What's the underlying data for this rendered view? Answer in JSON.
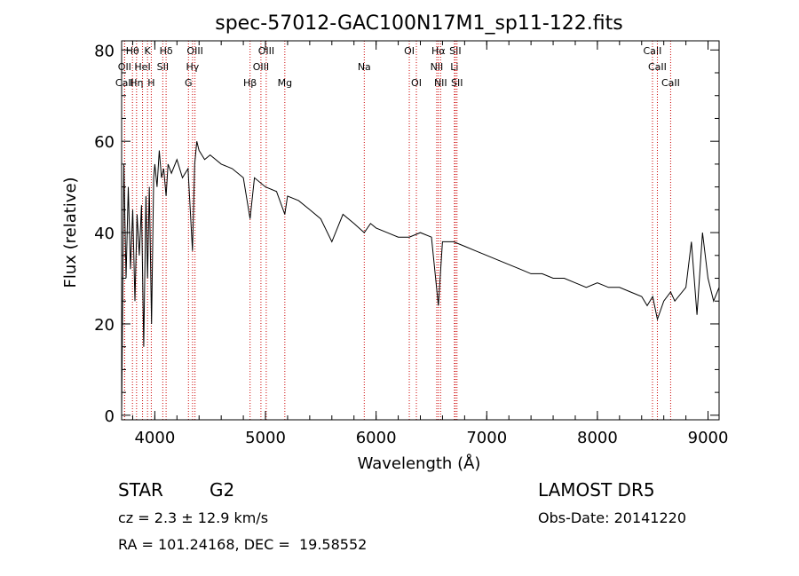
{
  "chart_data": {
    "type": "line",
    "title": "spec-57012-GAC100N17M1_sp11-122.fits",
    "xlabel": "Wavelength (Å)",
    "ylabel": "Flux (relative)",
    "xlim": [
      3700,
      9100
    ],
    "ylim": [
      -1,
      82
    ],
    "xticks": [
      4000,
      5000,
      6000,
      7000,
      8000,
      9000
    ],
    "yticks": [
      0,
      20,
      40,
      60,
      80
    ],
    "line_color": "#000000",
    "marker_color": "#cc0000",
    "series": [
      {
        "x": [
          3700,
          3720,
          3740,
          3760,
          3780,
          3800,
          3820,
          3840,
          3860,
          3880,
          3900,
          3920,
          3934,
          3950,
          3970,
          3990,
          4000,
          4020,
          4040,
          4060,
          4080,
          4102,
          4120,
          4150,
          4200,
          4250,
          4300,
          4320,
          4340,
          4360,
          4380,
          4400,
          4450,
          4500,
          4600,
          4700,
          4800,
          4861,
          4900,
          5000,
          5100,
          5175,
          5200,
          5300,
          5400,
          5500,
          5600,
          5700,
          5800,
          5893,
          5950,
          6000,
          6100,
          6200,
          6300,
          6400,
          6500,
          6563,
          6600,
          6700,
          6800,
          6900,
          7000,
          7100,
          7200,
          7300,
          7400,
          7500,
          7600,
          7700,
          7800,
          7900,
          8000,
          8100,
          8200,
          8300,
          8400,
          8450,
          8500,
          8542,
          8600,
          8662,
          8700,
          8800,
          8850,
          8900,
          8950,
          9000,
          9050,
          9100
        ],
        "y": [
          0,
          55,
          30,
          50,
          32,
          45,
          25,
          44,
          35,
          46,
          15,
          48,
          30,
          50,
          20,
          52,
          55,
          50,
          58,
          52,
          54,
          48,
          55,
          53,
          56,
          52,
          54,
          45,
          36,
          55,
          60,
          58,
          56,
          57,
          55,
          54,
          52,
          43,
          52,
          50,
          49,
          44,
          48,
          47,
          45,
          43,
          38,
          44,
          42,
          40,
          42,
          41,
          40,
          39,
          39,
          40,
          39,
          24,
          38,
          38,
          37,
          36,
          35,
          34,
          33,
          32,
          31,
          31,
          30,
          30,
          29,
          28,
          29,
          28,
          28,
          27,
          26,
          24,
          26,
          21,
          25,
          27,
          25,
          28,
          38,
          22,
          40,
          30,
          25,
          28
        ]
      }
    ],
    "lines": [
      {
        "name": "OII",
        "x": 3727,
        "row": 1
      },
      {
        "name": "CaII",
        "x": 3727,
        "row": 2
      },
      {
        "name": "Hθ",
        "x": 3798,
        "row": 0
      },
      {
        "name": "Hη",
        "x": 3835,
        "row": 2
      },
      {
        "name": "HeI",
        "x": 3889,
        "row": 1
      },
      {
        "name": "K",
        "x": 3934,
        "row": 0
      },
      {
        "name": "H",
        "x": 3968,
        "row": 2
      },
      {
        "name": "SII",
        "x": 4072,
        "row": 1
      },
      {
        "name": "Hδ",
        "x": 4102,
        "row": 0
      },
      {
        "name": "G",
        "x": 4304,
        "row": 2
      },
      {
        "name": "Hγ",
        "x": 4341,
        "row": 1
      },
      {
        "name": "OIII",
        "x": 4363,
        "row": 0
      },
      {
        "name": "Hβ",
        "x": 4861,
        "row": 2
      },
      {
        "name": "OIII",
        "x": 4959,
        "row": 1
      },
      {
        "name": "OIII",
        "x": 5007,
        "row": 0
      },
      {
        "name": "Mg",
        "x": 5175,
        "row": 2
      },
      {
        "name": "Na",
        "x": 5893,
        "row": 1
      },
      {
        "name": "OI",
        "x": 6300,
        "row": 0
      },
      {
        "name": "OI",
        "x": 6364,
        "row": 2
      },
      {
        "name": "NII",
        "x": 6548,
        "row": 1
      },
      {
        "name": "Hα",
        "x": 6563,
        "row": 0
      },
      {
        "name": "NII",
        "x": 6583,
        "row": 2
      },
      {
        "name": "Li",
        "x": 6708,
        "row": 1
      },
      {
        "name": "SII",
        "x": 6716,
        "row": 0
      },
      {
        "name": "SII",
        "x": 6731,
        "row": 2
      },
      {
        "name": "CaII",
        "x": 8498,
        "row": 0
      },
      {
        "name": "CaII",
        "x": 8542,
        "row": 1
      },
      {
        "name": "CaII",
        "x": 8662,
        "row": 2
      }
    ]
  },
  "info": {
    "class": "STAR",
    "subclass": "G2",
    "survey": "LAMOST DR5",
    "cz": "cz = 2.3 ± 12.9 km/s",
    "obs_date": "Obs-Date: 20141220",
    "coords": "RA = 101.24168, DEC =  19.58552"
  }
}
